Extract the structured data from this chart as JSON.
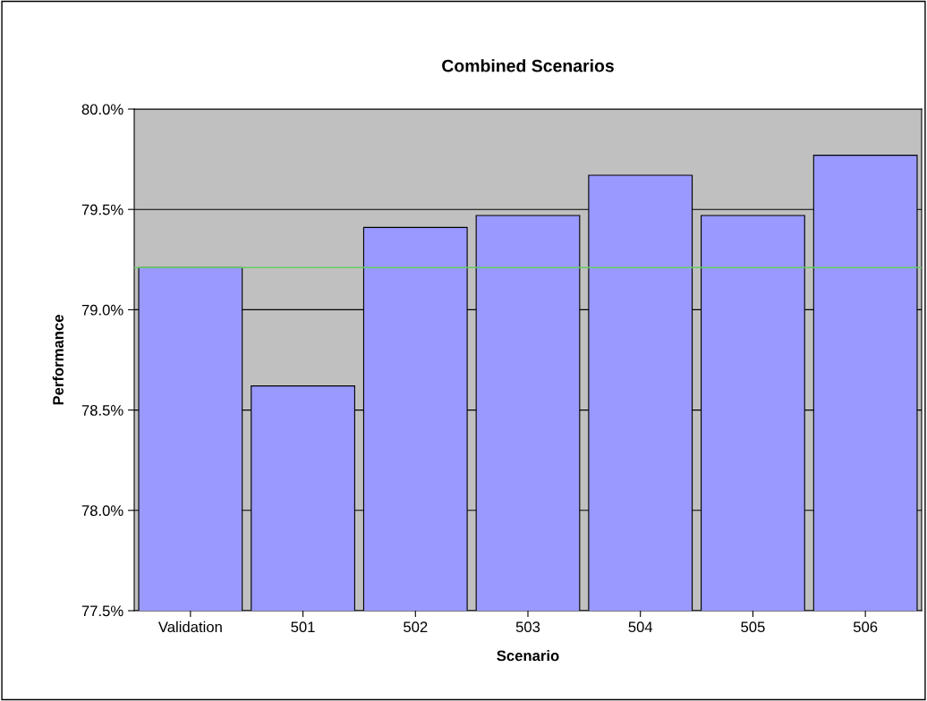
{
  "chart_data": {
    "type": "bar",
    "title": "Combined Scenarios",
    "xlabel": "Scenario",
    "ylabel": "Performance",
    "categories": [
      "Validation",
      "501",
      "502",
      "503",
      "504",
      "505",
      "506"
    ],
    "values": [
      79.21,
      78.62,
      79.41,
      79.47,
      79.67,
      79.47,
      79.77
    ],
    "color": "#9999ff",
    "ylim": [
      77.5,
      80.0
    ],
    "yticks": [
      {
        "value": 77.5,
        "label": "77.5%"
      },
      {
        "value": 78.0,
        "label": "78.0%"
      },
      {
        "value": 78.5,
        "label": "78.5%"
      },
      {
        "value": 79.0,
        "label": "79.0%"
      },
      {
        "value": 79.5,
        "label": "79.5%"
      },
      {
        "value": 80.0,
        "label": "80.0%"
      }
    ],
    "grid": "y",
    "ref_lines": [
      {
        "axis": "y",
        "value": 79.21,
        "color": "#66cc66"
      }
    ]
  }
}
